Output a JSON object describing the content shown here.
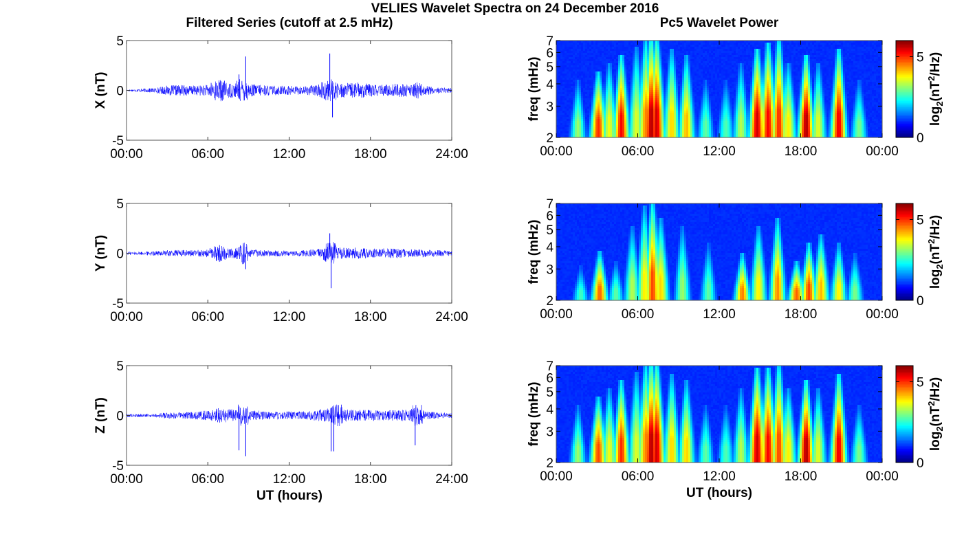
{
  "title": "VELIES Wavelet Spectra on 24 December 2016",
  "left_title": "Filtered Series (cutoff at 2.5 mHz)",
  "right_title": "Pc5 Wavelet Power",
  "xlabel": "UT (hours)",
  "chart_data": [
    {
      "type": "line",
      "component": "X",
      "ylabel": "X (nT)",
      "ylim": [
        -5,
        5
      ],
      "yticks": [
        "5",
        "0",
        "-5"
      ],
      "xlim": [
        0,
        24
      ],
      "xticks": [
        "00:00",
        "06:00",
        "12:00",
        "18:00",
        "24:00"
      ],
      "line_color": "#0000ff",
      "series": [
        {
          "x": [
            0,
            1,
            2,
            3,
            4,
            5,
            6,
            6.5,
            7,
            7.5,
            8,
            8.3,
            8.8,
            9,
            10,
            11,
            12,
            13,
            14,
            14.5,
            15,
            15.2,
            15.5,
            16,
            17,
            18,
            19,
            20,
            21,
            21.5,
            22,
            23,
            24
          ],
          "values": [
            0,
            0.1,
            0.2,
            0.5,
            0.6,
            0.5,
            0.6,
            1.2,
            1.3,
            0.9,
            0.8,
            1.6,
            3.4,
            0.7,
            0.6,
            0.5,
            0.5,
            0.4,
            0.6,
            1.0,
            3.7,
            -2.7,
            0.9,
            0.8,
            0.9,
            0.7,
            0.6,
            0.8,
            0.6,
            1.0,
            0.5,
            0.3,
            0.2
          ]
        }
      ]
    },
    {
      "type": "line",
      "component": "Y",
      "ylabel": "Y (nT)",
      "ylim": [
        -5,
        5
      ],
      "yticks": [
        "5",
        "0",
        "-5"
      ],
      "xlim": [
        0,
        24
      ],
      "xticks": [
        "00:00",
        "06:00",
        "12:00",
        "18:00",
        "24:00"
      ],
      "line_color": "#0000ff",
      "series": [
        {
          "x": [
            0,
            1,
            2,
            3,
            4,
            5,
            6,
            6.5,
            7,
            7.5,
            8,
            8.8,
            9,
            10,
            11,
            12,
            13,
            14,
            14.5,
            15,
            15.1,
            15.5,
            16,
            17,
            18,
            19,
            20,
            21,
            22,
            23,
            24
          ],
          "values": [
            0.1,
            0.1,
            0.2,
            0.3,
            0.3,
            0.3,
            0.4,
            0.9,
            1.0,
            0.6,
            0.5,
            -1.6,
            0.4,
            0.3,
            0.3,
            0.2,
            0.3,
            0.4,
            0.6,
            2.0,
            -3.5,
            0.6,
            0.6,
            0.6,
            0.5,
            0.5,
            0.5,
            0.4,
            0.4,
            0.3,
            0.2
          ]
        }
      ]
    },
    {
      "type": "line",
      "component": "Z",
      "ylabel": "Z (nT)",
      "ylim": [
        -5,
        5
      ],
      "yticks": [
        "5",
        "0",
        "-5"
      ],
      "xlim": [
        0,
        24
      ],
      "xticks": [
        "00:00",
        "06:00",
        "12:00",
        "18:00",
        "24:00"
      ],
      "line_color": "#0000ff",
      "series": [
        {
          "x": [
            0,
            1,
            2,
            3,
            4,
            5,
            6,
            7,
            7.5,
            8,
            8.3,
            8.8,
            9,
            10,
            11,
            12,
            13,
            14,
            15,
            15.1,
            15.3,
            16,
            17,
            18,
            19,
            20,
            21,
            21.3,
            22,
            23,
            24
          ],
          "values": [
            0.1,
            0.1,
            0.1,
            0.3,
            0.3,
            0.4,
            0.5,
            0.9,
            0.8,
            0.6,
            -3.5,
            -4.1,
            0.5,
            0.5,
            0.4,
            0.4,
            0.4,
            0.6,
            0.8,
            -3.6,
            -3.6,
            0.7,
            0.6,
            0.6,
            0.5,
            0.6,
            0.6,
            -3.0,
            0.4,
            0.3,
            0.2
          ]
        }
      ]
    },
    {
      "type": "heatmap",
      "component": "X",
      "ylabel": "freq (mHz)",
      "ylim": [
        2,
        7
      ],
      "yscale": "log",
      "yticks": [
        "7",
        "6",
        "5",
        "4",
        "3",
        "2"
      ],
      "xlim": [
        0,
        24
      ],
      "xticks": [
        "00:00",
        "06:00",
        "12:00",
        "18:00",
        "00:00"
      ],
      "colormap": "jet",
      "clim": [
        0,
        6
      ],
      "colorbar_ticks": [
        "5",
        "0"
      ],
      "colorbar_label": "log2(nT2/Hz)",
      "bursts": [
        {
          "t": 1.6,
          "power": 3.0,
          "top": 4.0
        },
        {
          "t": 3.1,
          "power": 5.2,
          "top": 4.5
        },
        {
          "t": 3.9,
          "power": 3.6,
          "top": 5.0
        },
        {
          "t": 4.8,
          "power": 5.5,
          "top": 5.5
        },
        {
          "t": 5.9,
          "power": 3.5,
          "top": 6.2
        },
        {
          "t": 6.6,
          "power": 4.6,
          "top": 7.0
        },
        {
          "t": 7.0,
          "power": 6.0,
          "top": 7.0
        },
        {
          "t": 7.4,
          "power": 5.8,
          "top": 7.0
        },
        {
          "t": 8.5,
          "power": 4.0,
          "top": 6.0
        },
        {
          "t": 9.6,
          "power": 4.2,
          "top": 5.5
        },
        {
          "t": 11.0,
          "power": 2.6,
          "top": 4.0
        },
        {
          "t": 12.5,
          "power": 2.5,
          "top": 4.0
        },
        {
          "t": 13.6,
          "power": 3.2,
          "top": 5.0
        },
        {
          "t": 14.8,
          "power": 5.8,
          "top": 6.0
        },
        {
          "t": 15.6,
          "power": 5.5,
          "top": 6.5
        },
        {
          "t": 16.4,
          "power": 5.2,
          "top": 7.0
        },
        {
          "t": 17.1,
          "power": 3.8,
          "top": 5.0
        },
        {
          "t": 18.4,
          "power": 6.0,
          "top": 5.5
        },
        {
          "t": 19.3,
          "power": 3.5,
          "top": 5.0
        },
        {
          "t": 20.8,
          "power": 5.6,
          "top": 6.0
        },
        {
          "t": 22.3,
          "power": 2.8,
          "top": 4.0
        }
      ]
    },
    {
      "type": "heatmap",
      "component": "Y",
      "ylabel": "freq (mHz)",
      "ylim": [
        2,
        7
      ],
      "yscale": "log",
      "yticks": [
        "7",
        "6",
        "5",
        "4",
        "3",
        "2"
      ],
      "xlim": [
        0,
        24
      ],
      "xticks": [
        "00:00",
        "06:00",
        "12:00",
        "18:00",
        "00:00"
      ],
      "colormap": "jet",
      "clim": [
        0,
        6
      ],
      "colorbar_ticks": [
        "5",
        "0"
      ],
      "colorbar_label": "log2(nT2/Hz)",
      "bursts": [
        {
          "t": 1.8,
          "power": 2.4,
          "top": 3.0
        },
        {
          "t": 3.2,
          "power": 4.8,
          "top": 3.6
        },
        {
          "t": 4.4,
          "power": 2.6,
          "top": 3.2
        },
        {
          "t": 5.6,
          "power": 3.2,
          "top": 5.0
        },
        {
          "t": 6.5,
          "power": 3.8,
          "top": 6.5
        },
        {
          "t": 7.1,
          "power": 5.0,
          "top": 7.0
        },
        {
          "t": 7.7,
          "power": 4.0,
          "top": 5.5
        },
        {
          "t": 9.3,
          "power": 3.0,
          "top": 5.0
        },
        {
          "t": 11.2,
          "power": 2.6,
          "top": 4.0
        },
        {
          "t": 13.7,
          "power": 4.6,
          "top": 3.5
        },
        {
          "t": 14.9,
          "power": 3.8,
          "top": 5.0
        },
        {
          "t": 16.3,
          "power": 4.5,
          "top": 5.5
        },
        {
          "t": 17.7,
          "power": 4.8,
          "top": 3.2
        },
        {
          "t": 18.6,
          "power": 5.0,
          "top": 4.0
        },
        {
          "t": 19.5,
          "power": 4.2,
          "top": 4.5
        },
        {
          "t": 20.8,
          "power": 3.8,
          "top": 4.0
        },
        {
          "t": 22.0,
          "power": 2.8,
          "top": 3.5
        }
      ]
    },
    {
      "type": "heatmap",
      "component": "Z",
      "ylabel": "freq (mHz)",
      "ylim": [
        2,
        7
      ],
      "yscale": "log",
      "yticks": [
        "7",
        "6",
        "5",
        "4",
        "3",
        "2"
      ],
      "xlim": [
        0,
        24
      ],
      "xticks": [
        "00:00",
        "06:00",
        "12:00",
        "18:00",
        "00:00"
      ],
      "colormap": "jet",
      "clim": [
        0,
        6
      ],
      "colorbar_ticks": [
        "5",
        "0"
      ],
      "colorbar_label": "log2(nT2/Hz)",
      "bursts": [
        {
          "t": 1.6,
          "power": 3.0,
          "top": 4.0
        },
        {
          "t": 3.1,
          "power": 5.0,
          "top": 4.5
        },
        {
          "t": 3.9,
          "power": 3.6,
          "top": 5.0
        },
        {
          "t": 4.8,
          "power": 5.2,
          "top": 5.5
        },
        {
          "t": 5.9,
          "power": 3.5,
          "top": 6.2
        },
        {
          "t": 6.6,
          "power": 4.6,
          "top": 7.0
        },
        {
          "t": 7.0,
          "power": 6.0,
          "top": 7.0
        },
        {
          "t": 7.4,
          "power": 5.8,
          "top": 7.0
        },
        {
          "t": 8.5,
          "power": 4.0,
          "top": 6.0
        },
        {
          "t": 9.6,
          "power": 4.0,
          "top": 5.5
        },
        {
          "t": 11.0,
          "power": 2.6,
          "top": 4.0
        },
        {
          "t": 12.5,
          "power": 2.5,
          "top": 4.0
        },
        {
          "t": 13.6,
          "power": 3.2,
          "top": 5.0
        },
        {
          "t": 14.8,
          "power": 5.8,
          "top": 6.5
        },
        {
          "t": 15.6,
          "power": 5.5,
          "top": 6.5
        },
        {
          "t": 16.4,
          "power": 5.0,
          "top": 7.0
        },
        {
          "t": 17.1,
          "power": 3.8,
          "top": 5.0
        },
        {
          "t": 18.4,
          "power": 6.0,
          "top": 5.5
        },
        {
          "t": 19.3,
          "power": 3.5,
          "top": 5.0
        },
        {
          "t": 20.8,
          "power": 5.6,
          "top": 6.0
        },
        {
          "t": 22.3,
          "power": 2.8,
          "top": 4.0
        }
      ]
    }
  ]
}
